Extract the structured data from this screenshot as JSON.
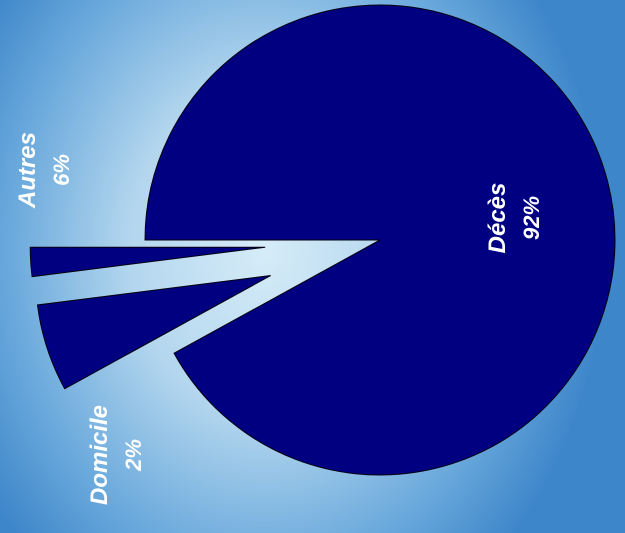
{
  "chart_data": {
    "type": "pie",
    "title": "",
    "slices": [
      {
        "label": "Décès",
        "value": 92,
        "value_label": "92%",
        "color": "#000080",
        "exploded": false
      },
      {
        "label": "Autres",
        "value": 6,
        "value_label": "6%",
        "color": "#000080",
        "exploded": true
      },
      {
        "label": "Domicile",
        "value": 2,
        "value_label": "2%",
        "color": "#000080",
        "exploded": true
      }
    ],
    "orientation": "rotated 90° counter-clockwise",
    "legend": "none",
    "label_position": "inside for large slice, outside for small slices"
  }
}
